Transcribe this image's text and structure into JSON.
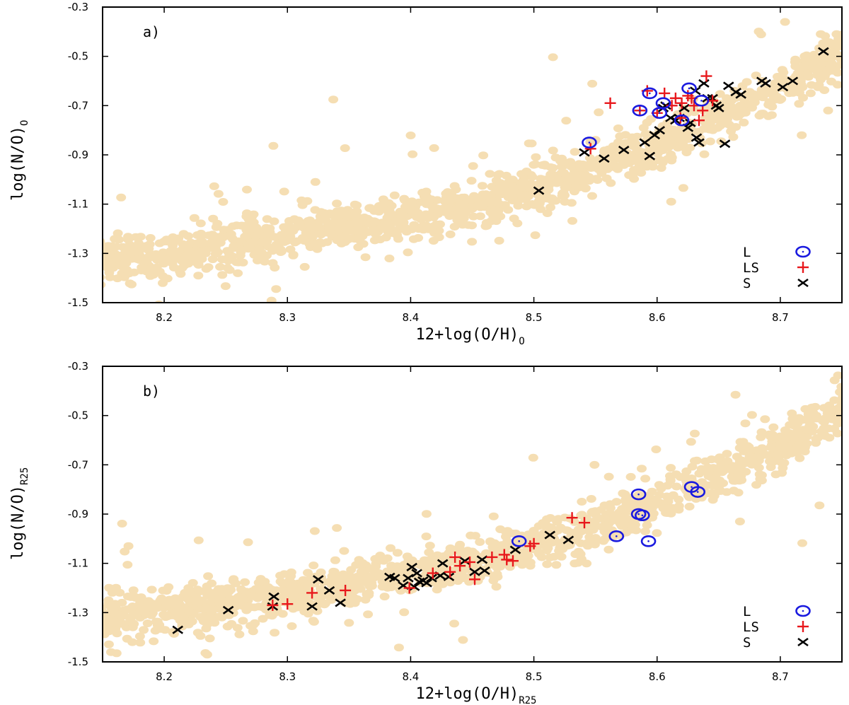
{
  "chart_data": [
    {
      "type": "scatter",
      "panel_label": "a)",
      "xlabel": "12+log(O/H)",
      "xlabel_sub": "O",
      "ylabel": "log(N/O)",
      "ylabel_sub": "O",
      "xlim": [
        8.15,
        8.75
      ],
      "ylim": [
        -1.5,
        -0.3
      ],
      "x_ticks": [
        "8.2",
        "8.3",
        "8.4",
        "8.5",
        "8.6",
        "8.7"
      ],
      "y_ticks": [
        "-0.3",
        "-0.5",
        "-0.7",
        "-0.9",
        "-1.1",
        "-1.3",
        "-1.5"
      ],
      "legend_position": "bottom-right",
      "background_cloud": {
        "color": "#f5deb3",
        "relation": "log(N/O) rising with 12+log(O/H)",
        "approx_points": 1500
      },
      "series": [
        {
          "name": "L",
          "marker": "circle-dot",
          "color": "#1a1adf",
          "points": [
            [
              8.545,
              -0.85
            ],
            [
              8.586,
              -0.72
            ],
            [
              8.594,
              -0.65
            ],
            [
              8.602,
              -0.73
            ],
            [
              8.605,
              -0.69
            ],
            [
              8.62,
              -0.76
            ],
            [
              8.626,
              -0.63
            ],
            [
              8.636,
              -0.68
            ]
          ]
        },
        {
          "name": "LS",
          "marker": "plus",
          "color": "#e8181c",
          "points": [
            [
              8.546,
              -0.875
            ],
            [
              8.562,
              -0.69
            ],
            [
              8.586,
              -0.72
            ],
            [
              8.592,
              -0.64
            ],
            [
              8.6,
              -0.73
            ],
            [
              8.606,
              -0.65
            ],
            [
              8.612,
              -0.7
            ],
            [
              8.615,
              -0.67
            ],
            [
              8.619,
              -0.75
            ],
            [
              8.62,
              -0.69
            ],
            [
              8.625,
              -0.66
            ],
            [
              8.628,
              -0.67
            ],
            [
              8.63,
              -0.7
            ],
            [
              8.634,
              -0.76
            ],
            [
              8.637,
              -0.72
            ],
            [
              8.64,
              -0.58
            ],
            [
              8.645,
              -0.68
            ]
          ]
        },
        {
          "name": "S",
          "marker": "cross",
          "color": "#000000",
          "points": [
            [
              8.504,
              -1.045
            ],
            [
              8.541,
              -0.89
            ],
            [
              8.557,
              -0.915
            ],
            [
              8.573,
              -0.88
            ],
            [
              8.59,
              -0.85
            ],
            [
              8.594,
              -0.905
            ],
            [
              8.598,
              -0.82
            ],
            [
              8.602,
              -0.8
            ],
            [
              8.605,
              -0.71
            ],
            [
              8.607,
              -0.7
            ],
            [
              8.611,
              -0.75
            ],
            [
              8.615,
              -0.76
            ],
            [
              8.618,
              -0.75
            ],
            [
              8.622,
              -0.71
            ],
            [
              8.625,
              -0.79
            ],
            [
              8.627,
              -0.77
            ],
            [
              8.631,
              -0.64
            ],
            [
              8.632,
              -0.83
            ],
            [
              8.634,
              -0.85
            ],
            [
              8.638,
              -0.61
            ],
            [
              8.641,
              -0.67
            ],
            [
              8.645,
              -0.67
            ],
            [
              8.648,
              -0.7
            ],
            [
              8.65,
              -0.71
            ],
            [
              8.655,
              -0.855
            ],
            [
              8.658,
              -0.62
            ],
            [
              8.664,
              -0.645
            ],
            [
              8.668,
              -0.655
            ],
            [
              8.685,
              -0.6
            ],
            [
              8.688,
              -0.61
            ],
            [
              8.702,
              -0.625
            ],
            [
              8.71,
              -0.6
            ],
            [
              8.735,
              -0.48
            ]
          ]
        }
      ]
    },
    {
      "type": "scatter",
      "panel_label": "b)",
      "xlabel": "12+log(O/H)",
      "xlabel_sub": "R25",
      "ylabel": "log(N/O)",
      "ylabel_sub": "R25",
      "xlim": [
        8.15,
        8.75
      ],
      "ylim": [
        -1.5,
        -0.3
      ],
      "x_ticks": [
        "8.2",
        "8.3",
        "8.4",
        "8.5",
        "8.6",
        "8.7"
      ],
      "y_ticks": [
        "-0.3",
        "-0.5",
        "-0.7",
        "-0.9",
        "-1.1",
        "-1.3",
        "-1.5"
      ],
      "legend_position": "bottom-right",
      "background_cloud": {
        "color": "#f5deb3",
        "relation": "log(N/O) rising with 12+log(O/H)",
        "approx_points": 1500
      },
      "series": [
        {
          "name": "L",
          "marker": "circle-dot",
          "color": "#1a1adf",
          "points": [
            [
              8.488,
              -1.01
            ],
            [
              8.567,
              -0.99
            ],
            [
              8.585,
              -0.82
            ],
            [
              8.585,
              -0.9
            ],
            [
              8.588,
              -0.905
            ],
            [
              8.593,
              -1.01
            ],
            [
              8.628,
              -0.79
            ],
            [
              8.633,
              -0.81
            ]
          ]
        },
        {
          "name": "LS",
          "marker": "plus",
          "color": "#e8181c",
          "points": [
            [
              8.288,
              -1.27
            ],
            [
              8.3,
              -1.265
            ],
            [
              8.32,
              -1.22
            ],
            [
              8.347,
              -1.21
            ],
            [
              8.399,
              -1.2
            ],
            [
              8.418,
              -1.14
            ],
            [
              8.432,
              -1.135
            ],
            [
              8.436,
              -1.075
            ],
            [
              8.44,
              -1.11
            ],
            [
              8.448,
              -1.095
            ],
            [
              8.452,
              -1.165
            ],
            [
              8.466,
              -1.075
            ],
            [
              8.476,
              -1.065
            ],
            [
              8.478,
              -1.085
            ],
            [
              8.483,
              -1.09
            ],
            [
              8.497,
              -1.03
            ],
            [
              8.5,
              -1.02
            ],
            [
              8.531,
              -0.915
            ],
            [
              8.541,
              -0.935
            ]
          ]
        },
        {
          "name": "S",
          "marker": "cross",
          "color": "#000000",
          "points": [
            [
              8.211,
              -1.37
            ],
            [
              8.252,
              -1.29
            ],
            [
              8.288,
              -1.275
            ],
            [
              8.289,
              -1.235
            ],
            [
              8.32,
              -1.275
            ],
            [
              8.325,
              -1.165
            ],
            [
              8.334,
              -1.21
            ],
            [
              8.343,
              -1.26
            ],
            [
              8.383,
              -1.155
            ],
            [
              8.387,
              -1.16
            ],
            [
              8.394,
              -1.19
            ],
            [
              8.398,
              -1.16
            ],
            [
              8.401,
              -1.115
            ],
            [
              8.403,
              -1.195
            ],
            [
              8.405,
              -1.14
            ],
            [
              8.407,
              -1.175
            ],
            [
              8.41,
              -1.17
            ],
            [
              8.413,
              -1.18
            ],
            [
              8.417,
              -1.16
            ],
            [
              8.424,
              -1.15
            ],
            [
              8.426,
              -1.1
            ],
            [
              8.431,
              -1.155
            ],
            [
              8.444,
              -1.09
            ],
            [
              8.452,
              -1.135
            ],
            [
              8.458,
              -1.085
            ],
            [
              8.46,
              -1.13
            ],
            [
              8.485,
              -1.045
            ],
            [
              8.513,
              -0.985
            ],
            [
              8.528,
              -1.005
            ]
          ]
        }
      ]
    }
  ]
}
